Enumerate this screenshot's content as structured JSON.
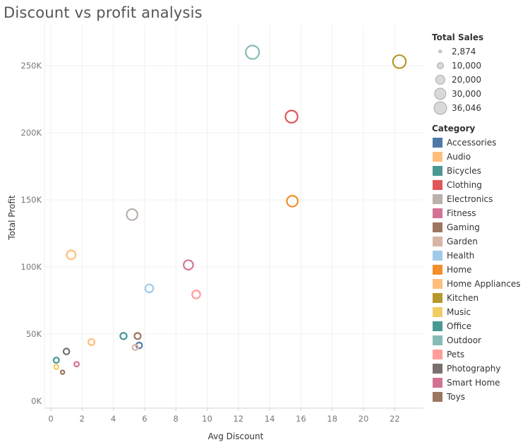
{
  "title": "Discount vs profit analysis",
  "chart_data": {
    "type": "scatter",
    "title": "Discount vs profit analysis",
    "xlabel": "Avg Discount",
    "ylabel": "Total Profit",
    "xlim": [
      0,
      24
    ],
    "ylim": [
      0,
      275000
    ],
    "x_ticks": [
      0,
      2,
      4,
      6,
      8,
      10,
      12,
      14,
      16,
      18,
      20,
      22
    ],
    "x_tick_labels": [
      "0",
      "2",
      "4",
      "6",
      "8",
      "10",
      "12",
      "14",
      "16",
      "18",
      "20",
      "22"
    ],
    "y_ticks": [
      0,
      50000,
      100000,
      150000,
      200000,
      250000
    ],
    "y_tick_labels": [
      "0K",
      "50K",
      "100K",
      "150K",
      "200K",
      "250K"
    ],
    "grid": true,
    "legend_placement": "right",
    "size_legend": {
      "title": "Total Sales",
      "values": [
        2874,
        10000,
        20000,
        30000,
        36046
      ],
      "labels": [
        "2,874",
        "10,000",
        "20,000",
        "30,000",
        "36,046"
      ]
    },
    "category_legend": {
      "title": "Category",
      "items": [
        {
          "name": "Accessories",
          "color": "#4e79a7"
        },
        {
          "name": "Audio",
          "color": "#ffbe7d"
        },
        {
          "name": "Bicycles",
          "color": "#499894"
        },
        {
          "name": "Clothing",
          "color": "#e15759"
        },
        {
          "name": "Electronics",
          "color": "#bab0ac"
        },
        {
          "name": "Fitness",
          "color": "#d37295"
        },
        {
          "name": "Gaming",
          "color": "#9d7660"
        },
        {
          "name": "Garden",
          "color": "#d7b5a6"
        },
        {
          "name": "Health",
          "color": "#a0cbe8"
        },
        {
          "name": "Home",
          "color": "#f28e2b"
        },
        {
          "name": "Home Appliances",
          "color": "#ffbe7d"
        },
        {
          "name": "Kitchen",
          "color": "#b6992d"
        },
        {
          "name": "Music",
          "color": "#f1ce63"
        },
        {
          "name": "Office",
          "color": "#499894"
        },
        {
          "name": "Outdoor",
          "color": "#86bcb6"
        },
        {
          "name": "Pets",
          "color": "#ff9d9a"
        },
        {
          "name": "Photography",
          "color": "#79706e"
        },
        {
          "name": "Smart Home",
          "color": "#d37295"
        },
        {
          "name": "Toys",
          "color": "#9d7660"
        }
      ]
    },
    "points": [
      {
        "category": "Outdoor",
        "x": 12.9,
        "y": 260000,
        "sales": 36046
      },
      {
        "category": "Kitchen",
        "x": 22.3,
        "y": 253000,
        "sales": 34000
      },
      {
        "category": "Clothing",
        "x": 15.4,
        "y": 212000,
        "sales": 30000
      },
      {
        "category": "Home",
        "x": 15.45,
        "y": 149000,
        "sales": 24000
      },
      {
        "category": "Electronics",
        "x": 5.2,
        "y": 139000,
        "sales": 24000
      },
      {
        "category": "Audio",
        "x": 1.3,
        "y": 109000,
        "sales": 16000
      },
      {
        "category": "Fitness",
        "x": 8.8,
        "y": 101500,
        "sales": 18000
      },
      {
        "category": "Health",
        "x": 6.3,
        "y": 84000,
        "sales": 13000
      },
      {
        "category": "Pets",
        "x": 9.3,
        "y": 79500,
        "sales": 13000
      },
      {
        "category": "Office",
        "x": 4.65,
        "y": 48500,
        "sales": 8500
      },
      {
        "category": "Gaming",
        "x": 5.55,
        "y": 48500,
        "sales": 8000
      },
      {
        "category": "Home Appliances",
        "x": 2.6,
        "y": 44000,
        "sales": 8000
      },
      {
        "category": "Accessories",
        "x": 5.65,
        "y": 41500,
        "sales": 7000
      },
      {
        "category": "Garden",
        "x": 5.4,
        "y": 40000,
        "sales": 6000
      },
      {
        "category": "Photography",
        "x": 1.0,
        "y": 37000,
        "sales": 7000
      },
      {
        "category": "Bicycles",
        "x": 0.35,
        "y": 30500,
        "sales": 6000
      },
      {
        "category": "Smart Home",
        "x": 1.65,
        "y": 27500,
        "sales": 4500
      },
      {
        "category": "Music",
        "x": 0.35,
        "y": 25500,
        "sales": 4000
      },
      {
        "category": "Toys",
        "x": 0.75,
        "y": 21500,
        "sales": 2874
      }
    ]
  }
}
